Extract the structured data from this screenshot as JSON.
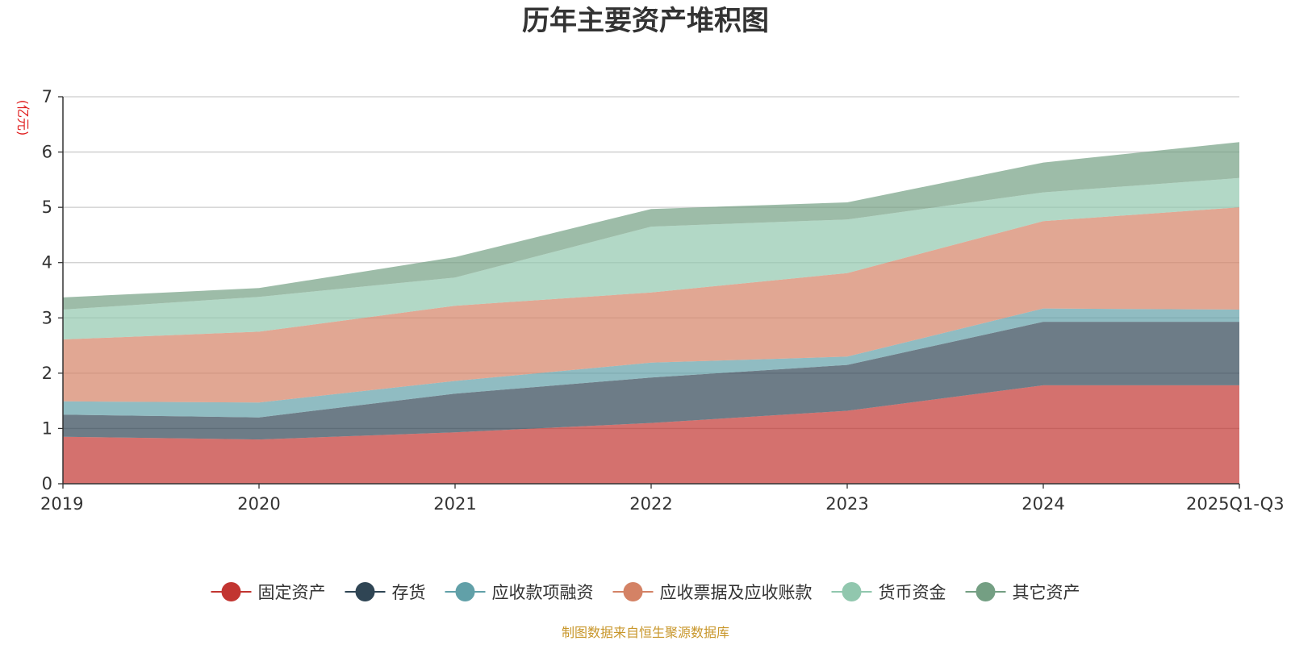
{
  "chart_data": {
    "type": "area",
    "stacked": true,
    "title": "历年主要资产堆积图",
    "ylabel": "(亿元)",
    "xlabel": "",
    "categories": [
      "2019",
      "2020",
      "2021",
      "2022",
      "2023",
      "2024",
      "2025Q1-Q3"
    ],
    "ylim": [
      0,
      7
    ],
    "yticks": [
      0,
      1,
      2,
      3,
      4,
      5,
      6,
      7
    ],
    "grid": true,
    "legend_position": "bottom",
    "series": [
      {
        "name": "固定资产",
        "color": "#c23531",
        "values": [
          0.85,
          0.8,
          0.93,
          1.1,
          1.32,
          1.78,
          1.78
        ]
      },
      {
        "name": "存货",
        "color": "#2f4554",
        "values": [
          0.4,
          0.4,
          0.7,
          0.82,
          0.83,
          1.15,
          1.15
        ]
      },
      {
        "name": "应收款项融资",
        "color": "#61a0a8",
        "values": [
          0.24,
          0.27,
          0.23,
          0.27,
          0.15,
          0.24,
          0.22
        ]
      },
      {
        "name": "应收票据及应收账款",
        "color": "#d48265",
        "values": [
          1.12,
          1.28,
          1.36,
          1.27,
          1.51,
          1.58,
          1.85
        ]
      },
      {
        "name": "货币资金",
        "color": "#91c7ae",
        "values": [
          0.54,
          0.63,
          0.51,
          1.19,
          0.97,
          0.52,
          0.53
        ]
      },
      {
        "name": "其它资产",
        "color": "#749f83",
        "values": [
          0.22,
          0.16,
          0.37,
          0.32,
          0.31,
          0.54,
          0.65
        ]
      }
    ]
  },
  "source": "制图数据来自恒生聚源数据库"
}
